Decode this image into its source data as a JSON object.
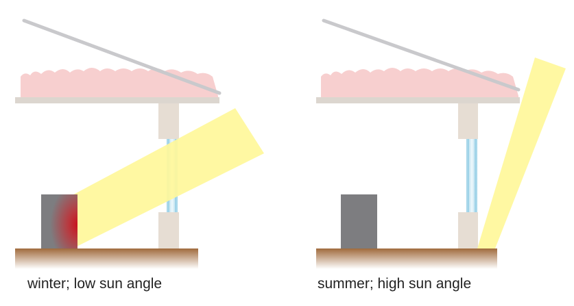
{
  "captions": {
    "left": "winter; low sun angle",
    "right": "summer; high sun angle"
  },
  "colors": {
    "roof": "#c9c9cc",
    "insulation": "#f7cfcf",
    "ceiling": "#dcd6cf",
    "wall": "#e6ddd3",
    "glass": "#cfe9f5",
    "glass_edge": "#9fd3e8",
    "sunbeam": "#fff79a",
    "floor_top": "#a06a3c",
    "floor_bottom": "#ffffff",
    "thermal_mass": "#7d7d80",
    "heat": "#c8141e"
  },
  "panels": [
    {
      "name": "winter",
      "season": "winter",
      "sun_angle": "low",
      "mass_heated": true
    },
    {
      "name": "summer",
      "season": "summer",
      "sun_angle": "high",
      "mass_heated": false
    }
  ]
}
